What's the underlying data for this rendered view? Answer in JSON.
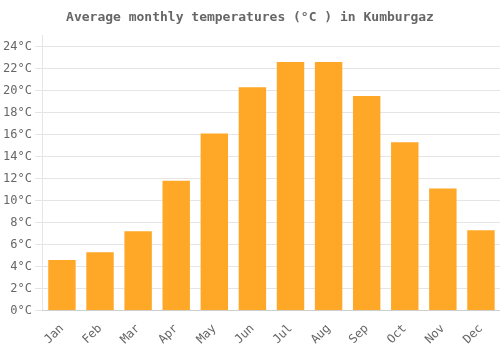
{
  "chart_data": {
    "type": "bar",
    "title": "Average monthly temperatures (°C ) in Kumburgaz",
    "categories": [
      "Jan",
      "Feb",
      "Mar",
      "Apr",
      "May",
      "Jun",
      "Jul",
      "Aug",
      "Sep",
      "Oct",
      "Nov",
      "Dec"
    ],
    "values": [
      4.6,
      5.3,
      7.2,
      11.8,
      16.1,
      20.3,
      22.6,
      22.6,
      19.5,
      15.3,
      11.1,
      7.3
    ],
    "color": "#FFA726",
    "ylim": [
      0,
      25
    ],
    "yticks": [
      {
        "value": 0,
        "label": "0°C"
      },
      {
        "value": 2,
        "label": "2°C"
      },
      {
        "value": 4,
        "label": "4°C"
      },
      {
        "value": 6,
        "label": "6°C"
      },
      {
        "value": 8,
        "label": "8°C"
      },
      {
        "value": 10,
        "label": "10°C"
      },
      {
        "value": 12,
        "label": "12°C"
      },
      {
        "value": 14,
        "label": "14°C"
      },
      {
        "value": 16,
        "label": "16°C"
      },
      {
        "value": 18,
        "label": "18°C"
      },
      {
        "value": 20,
        "label": "20°C"
      },
      {
        "value": 22,
        "label": "22°C"
      },
      {
        "value": 24,
        "label": "24°C"
      }
    ],
    "grid": true
  }
}
